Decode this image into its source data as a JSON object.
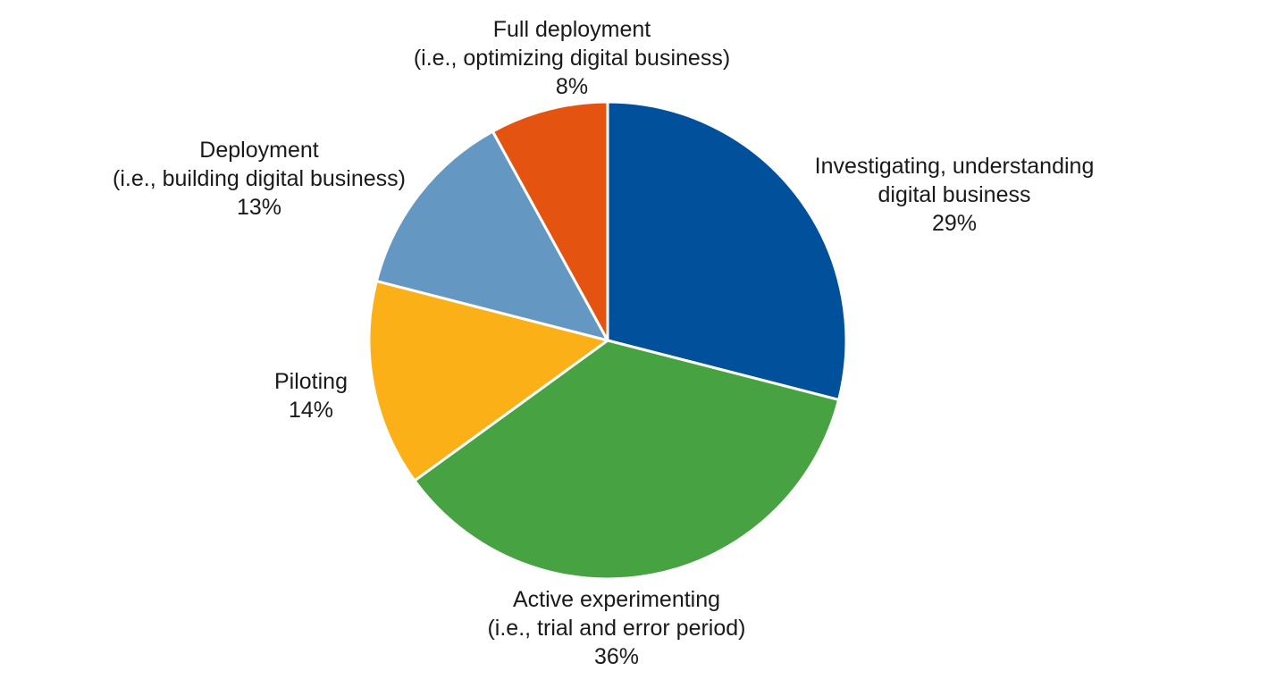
{
  "chart_data": {
    "type": "pie",
    "start_angle_deg": 0,
    "direction": "clockwise",
    "legend": "none",
    "slices": [
      {
        "label_lines": [
          "Investigating, understanding",
          "digital business"
        ],
        "value": 29,
        "value_label": "29%",
        "color": "#00509b"
      },
      {
        "label_lines": [
          "Active experimenting",
          "(i.e., trial and error period)"
        ],
        "value": 36,
        "value_label": "36%",
        "color": "#47a241"
      },
      {
        "label_lines": [
          "Piloting"
        ],
        "value": 14,
        "value_label": "14%",
        "color": "#fbb018"
      },
      {
        "label_lines": [
          "Deployment",
          "(i.e., building digital business)"
        ],
        "value": 13,
        "value_label": "13%",
        "color": "#6597c3"
      },
      {
        "label_lines": [
          "Full deployment",
          "(i.e., optimizing digital business)"
        ],
        "value": 8,
        "value_label": "8%",
        "color": "#e4530f"
      }
    ]
  }
}
